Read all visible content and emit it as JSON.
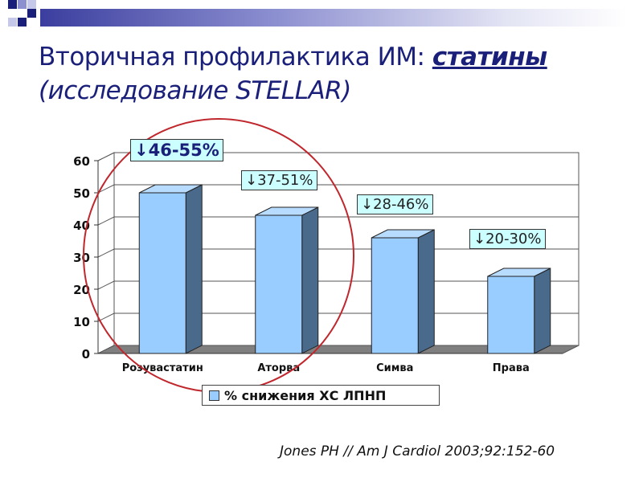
{
  "slide": {
    "title_main": "Вторичная профилактика ИМ: ",
    "title_highlight": "статины",
    "title_sub": "(исследование STELLAR)",
    "citation": "Jones PH // Am J Cardiol 2003;92:152-60"
  },
  "colors": {
    "bar_face": "#99ccff",
    "bar_side": "#4a6a8c",
    "floor": "#7f7f7f",
    "callout_bg": "#ccffff",
    "circle": "#c0272d",
    "title": "#1a1f7a"
  },
  "chart_data": {
    "type": "bar",
    "categories": [
      "Розувастатин",
      "Аторва",
      "Симва",
      "Права"
    ],
    "series": [
      {
        "name": "% снижения ХС ЛПНП",
        "values": [
          50,
          43,
          36,
          24
        ]
      }
    ],
    "ylim": [
      0,
      60
    ],
    "yticks": [
      0,
      10,
      20,
      30,
      40,
      50,
      60
    ],
    "grid": true,
    "legend_position": "bottom",
    "annotations": [
      "↓46-55%",
      "↓37-51%",
      "↓28-46%",
      "↓20-30%"
    ]
  }
}
